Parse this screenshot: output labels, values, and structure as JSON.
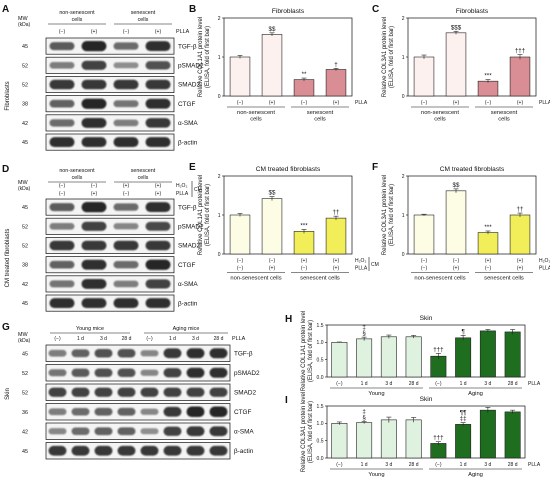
{
  "panel_letters": {
    "A": "A",
    "B": "B",
    "C": "C",
    "D": "D",
    "E": "E",
    "F": "F",
    "G": "G",
    "H": "H",
    "I": "I"
  },
  "blots": {
    "mw": "MW",
    "kda": "(kDa)",
    "A": {
      "group_left": [
        "non-senescent",
        "cells"
      ],
      "group_right": [
        "senescent",
        "cells"
      ],
      "treat_label": "PLLA",
      "treat_row": [
        "(−)",
        "(+)",
        "(−)",
        "(+)"
      ],
      "side_label": "Fibroblasts",
      "rows": [
        {
          "mw": "45",
          "name": "TGF-β",
          "int": [
            0.55,
            0.85,
            0.45,
            0.8
          ]
        },
        {
          "mw": "52",
          "name": "pSMAD2",
          "int": [
            0.35,
            0.7,
            0.25,
            0.6
          ]
        },
        {
          "mw": "52",
          "name": "SMAD2",
          "int": [
            0.75,
            0.75,
            0.75,
            0.75
          ]
        },
        {
          "mw": "38",
          "name": "CTGF",
          "int": [
            0.5,
            0.85,
            0.4,
            0.8
          ]
        },
        {
          "mw": "42",
          "name": "α-SMA",
          "int": [
            0.45,
            0.8,
            0.35,
            0.75
          ]
        },
        {
          "mw": "45",
          "name": "β-actin",
          "int": [
            0.8,
            0.8,
            0.8,
            0.8
          ]
        }
      ]
    },
    "D": {
      "group_left": [
        "non-senescent",
        "cells"
      ],
      "group_right": [
        "senescent",
        "cells"
      ],
      "treat_labels": [
        "H₂O₂",
        "PLLA"
      ],
      "cm": "CM",
      "h2o2_row": [
        "(−)",
        "(−)",
        "(+)",
        "(+)"
      ],
      "plla_row": [
        "(−)",
        "(+)",
        "(−)",
        "(+)"
      ],
      "side_label": "CM treated fibroblasts",
      "rows": [
        {
          "mw": "45",
          "name": "TGF-β",
          "int": [
            0.55,
            0.85,
            0.45,
            0.8
          ]
        },
        {
          "mw": "52",
          "name": "pSMAD2",
          "int": [
            0.35,
            0.7,
            0.3,
            0.65
          ]
        },
        {
          "mw": "52",
          "name": "SMAD2",
          "int": [
            0.75,
            0.75,
            0.75,
            0.75
          ]
        },
        {
          "mw": "38",
          "name": "CTGF",
          "int": [
            0.5,
            0.8,
            0.45,
            0.85
          ]
        },
        {
          "mw": "42",
          "name": "α-SMA",
          "int": [
            0.4,
            0.8,
            0.35,
            0.7
          ]
        },
        {
          "mw": "45",
          "name": "β-actin",
          "int": [
            0.8,
            0.8,
            0.8,
            0.8
          ]
        }
      ]
    },
    "G": {
      "group_left": "Young mice",
      "group_right": "Aging mice",
      "treat_label": "PLLA",
      "treat_row": [
        "(−)",
        "1 d",
        "3 d",
        "28 d",
        "(−)",
        "1 d",
        "3 d",
        "28 d"
      ],
      "side_label": "Skin",
      "rows": [
        {
          "mw": "45",
          "name": "TGF-β",
          "int": [
            0.35,
            0.5,
            0.6,
            0.6,
            0.3,
            0.75,
            0.8,
            0.8
          ]
        },
        {
          "mw": "52",
          "name": "pSMAD2",
          "int": [
            0.4,
            0.55,
            0.6,
            0.6,
            0.3,
            0.7,
            0.8,
            0.8
          ]
        },
        {
          "mw": "52",
          "name": "SMAD2",
          "int": [
            0.7,
            0.7,
            0.7,
            0.7,
            0.7,
            0.7,
            0.7,
            0.7
          ]
        },
        {
          "mw": "36",
          "name": "CTGF",
          "int": [
            0.35,
            0.45,
            0.5,
            0.5,
            0.3,
            0.75,
            0.85,
            0.85
          ]
        },
        {
          "mw": "42",
          "name": "α-SMA",
          "int": [
            0.3,
            0.45,
            0.5,
            0.5,
            0.25,
            0.7,
            0.75,
            0.75
          ]
        },
        {
          "mw": "45",
          "name": "β-actin",
          "int": [
            0.75,
            0.75,
            0.75,
            0.75,
            0.75,
            0.75,
            0.75,
            0.75
          ]
        }
      ]
    }
  },
  "colors": {
    "fib_light": "#fdf1f0",
    "fib_dark": "#d98e95",
    "cm_light": "#fdfce4",
    "cm_dark": "#f2ee5a",
    "skin_light": "#dff1df",
    "skin_dark": "#1f6e1f",
    "band": "#111111"
  },
  "chart_data": [
    {
      "id": "B",
      "type": "bar",
      "title": "Fibroblasts",
      "ylabel": [
        "Relative COL1A1 protein level",
        "(ELISA, fold of first bar)"
      ],
      "ylim": [
        0,
        2
      ],
      "yticks": [
        "0",
        "1",
        "2"
      ],
      "values": [
        1.0,
        1.58,
        0.42,
        0.68
      ],
      "errors": [
        0.04,
        0.04,
        0.04,
        0.03
      ],
      "sig": [
        "",
        "$$",
        "**",
        "†"
      ],
      "colors": [
        "#fdf1f0",
        "#fdf1f0",
        "#d98e95",
        "#d98e95"
      ],
      "treat_label": "PLLA",
      "rows": [
        [
          "(−)",
          "(+)",
          "(−)",
          "(+)"
        ]
      ],
      "groups": [
        [
          "non-senescent",
          "cells"
        ],
        [
          "senescent",
          "cells"
        ]
      ]
    },
    {
      "id": "C",
      "type": "bar",
      "title": "Fibroblasts",
      "ylabel": [
        "Relative COL3A1 protein level",
        "(ELISA, fold of first bar)"
      ],
      "ylim": [
        0,
        2
      ],
      "yticks": [
        "0",
        "1",
        "2"
      ],
      "values": [
        1.0,
        1.62,
        0.38,
        1.0
      ],
      "errors": [
        0.05,
        0.04,
        0.04,
        0.06
      ],
      "sig": [
        "",
        "$$$",
        "***",
        "†††"
      ],
      "colors": [
        "#fdf1f0",
        "#fdf1f0",
        "#d98e95",
        "#d98e95"
      ],
      "treat_label": "PLLA",
      "rows": [
        [
          "(−)",
          "(+)",
          "(−)",
          "(+)"
        ]
      ],
      "groups": [
        [
          "non-senescent",
          "cells"
        ],
        [
          "senescent",
          "cells"
        ]
      ]
    },
    {
      "id": "E",
      "type": "bar",
      "title": "CM treated fibroblasts",
      "ylabel": [
        "Relative COL1A1 protein level",
        "(ELISA, fold of first bar)"
      ],
      "ylim": [
        0,
        2
      ],
      "yticks": [
        "0",
        "1",
        "2"
      ],
      "values": [
        1.0,
        1.42,
        0.58,
        0.92
      ],
      "errors": [
        0.04,
        0.05,
        0.05,
        0.05
      ],
      "sig": [
        "",
        "$$",
        "***",
        "††"
      ],
      "colors": [
        "#fdfce4",
        "#fdfce4",
        "#f2ee5a",
        "#f2ee5a"
      ],
      "row_labels": [
        "H₂O₂",
        "PLLA"
      ],
      "cm": "CM",
      "rows": [
        [
          "(−)",
          "(−)",
          "(+)",
          "(+)"
        ],
        [
          "(−)",
          "(+)",
          "(−)",
          "(+)"
        ]
      ],
      "groups": [
        [
          "non-senescent cells"
        ],
        [
          "senescent cells"
        ]
      ]
    },
    {
      "id": "F",
      "type": "bar",
      "title": "CM treated fibroblasts",
      "ylabel": [
        "Relative COL3A1 protein level",
        "(ELISA, fold of first bar)"
      ],
      "ylim": [
        0,
        2
      ],
      "yticks": [
        "0",
        "1",
        "2"
      ],
      "values": [
        1.0,
        1.62,
        0.55,
        1.0
      ],
      "errors": [
        0.02,
        0.05,
        0.04,
        0.05
      ],
      "sig": [
        "",
        "$$",
        "***",
        "††"
      ],
      "colors": [
        "#fdfce4",
        "#fdfce4",
        "#f2ee5a",
        "#f2ee5a"
      ],
      "row_labels": [
        "H₂O₂",
        "PLLA"
      ],
      "cm": "CM",
      "rows": [
        [
          "(−)",
          "(−)",
          "(+)",
          "(+)"
        ],
        [
          "(−)",
          "(+)",
          "(−)",
          "(+)"
        ]
      ],
      "groups": [
        [
          "non-senescent cells"
        ],
        [
          "senescent cells"
        ]
      ]
    },
    {
      "id": "H",
      "type": "bar",
      "title": "Skin",
      "ylabel": [
        "Relative COL1A1 protein level",
        "(ELISA, fold of first bar)"
      ],
      "ylim": [
        0,
        1.5
      ],
      "yticks": [
        "0.0",
        "0.5",
        "1.0",
        "1.5"
      ],
      "values": [
        1.0,
        1.1,
        1.16,
        1.16,
        0.6,
        1.13,
        1.33,
        1.3
      ],
      "errors": [
        0.01,
        0.05,
        0.05,
        0.04,
        0.08,
        0.07,
        0.04,
        0.07
      ],
      "sig": [
        "",
        "‡\n§",
        "",
        "",
        "†††",
        "¶",
        "",
        ""
      ],
      "colors": [
        "#dff1df",
        "#dff1df",
        "#dff1df",
        "#dff1df",
        "#1f6e1f",
        "#1f6e1f",
        "#1f6e1f",
        "#1f6e1f"
      ],
      "treat_label": "PLLA",
      "rows": [
        [
          "(−)",
          "1 d",
          "3 d",
          "28 d",
          "(−)",
          "1 d",
          "3 d",
          "28 d"
        ]
      ],
      "groups": [
        [
          "Young"
        ],
        [
          "Aging"
        ]
      ]
    },
    {
      "id": "I",
      "type": "bar",
      "title": "Skin",
      "ylabel": [
        "Relative COL3A1 protein level",
        "(ELISA, fold of first bar)"
      ],
      "ylim": [
        0,
        1.5
      ],
      "yticks": [
        "0.0",
        "0.5",
        "1.0",
        "1.5"
      ],
      "values": [
        1.0,
        1.02,
        1.1,
        1.1,
        0.42,
        0.97,
        1.38,
        1.33
      ],
      "errors": [
        0.04,
        0.03,
        0.08,
        0.07,
        0.05,
        0.05,
        0.08,
        0.05
      ],
      "sig": [
        "",
        "‡\n§",
        "",
        "",
        "†††",
        "¶¶\n‡‡",
        "",
        ""
      ],
      "colors": [
        "#dff1df",
        "#dff1df",
        "#dff1df",
        "#dff1df",
        "#1f6e1f",
        "#1f6e1f",
        "#1f6e1f",
        "#1f6e1f"
      ],
      "treat_label": "PLLA",
      "rows": [
        [
          "(−)",
          "1 d",
          "3 d",
          "28 d",
          "(−)",
          "1 d",
          "3 d",
          "28 d"
        ]
      ],
      "groups": [
        [
          "Young"
        ],
        [
          "Aging"
        ]
      ]
    }
  ]
}
